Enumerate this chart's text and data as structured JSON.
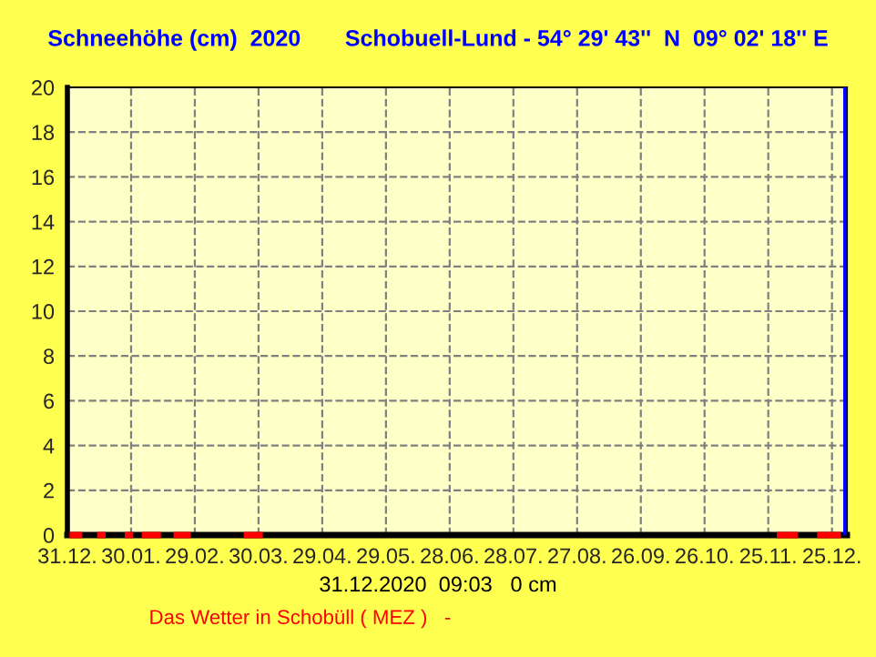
{
  "chart_data": {
    "type": "line",
    "title": "Schneehöhe (cm)  2020       Schobuell-Lund - 54° 29' 43''  N  09° 02' 18'' E",
    "series": [
      {
        "color": "#ff0000",
        "x": [
          "2020-01-01",
          "2020-01-07",
          null,
          "2020-01-14",
          "2020-01-18",
          null,
          "2020-01-27",
          "2020-01-31",
          null,
          "2020-02-04",
          "2020-02-13",
          null,
          "2020-02-19",
          "2020-02-27",
          null,
          "2020-03-23",
          "2020-04-01",
          null,
          "2020-11-29",
          "2020-12-09",
          null,
          "2020-12-18",
          "2020-12-29"
        ],
        "values": [
          0,
          0,
          null,
          0,
          0,
          null,
          0,
          0,
          null,
          0,
          0,
          null,
          0,
          0,
          null,
          0,
          0,
          null,
          0,
          0,
          null,
          0,
          0
        ]
      }
    ],
    "xlim": [
      "2019-12-31",
      "2021-01-01"
    ],
    "xticks": [
      {
        "value": "2019-12-31",
        "label": "31.12."
      },
      {
        "value": "2020-01-30",
        "label": "30.01."
      },
      {
        "value": "2020-02-29",
        "label": "29.02."
      },
      {
        "value": "2020-03-30",
        "label": "30.03."
      },
      {
        "value": "2020-04-29",
        "label": "29.04."
      },
      {
        "value": "2020-05-29",
        "label": "29.05."
      },
      {
        "value": "2020-06-28",
        "label": "28.06."
      },
      {
        "value": "2020-07-28",
        "label": "28.07."
      },
      {
        "value": "2020-08-27",
        "label": "27.08."
      },
      {
        "value": "2020-09-26",
        "label": "26.09."
      },
      {
        "value": "2020-10-26",
        "label": "26.10."
      },
      {
        "value": "2020-11-25",
        "label": "25.11."
      },
      {
        "value": "2020-12-25",
        "label": "25.12."
      }
    ],
    "ylim": [
      0,
      20
    ],
    "yticks": [
      0,
      2,
      4,
      6,
      8,
      10,
      12,
      14,
      16,
      18,
      20
    ],
    "grid": true,
    "legend": false,
    "ref_lines": [
      {
        "axis": "x",
        "value": "2020-12-31",
        "color": "#0000ff"
      }
    ],
    "annotations": [
      "31.12.2020  09:03   0 cm",
      "Das Wetter in Schobüll ( MEZ )   -"
    ]
  }
}
